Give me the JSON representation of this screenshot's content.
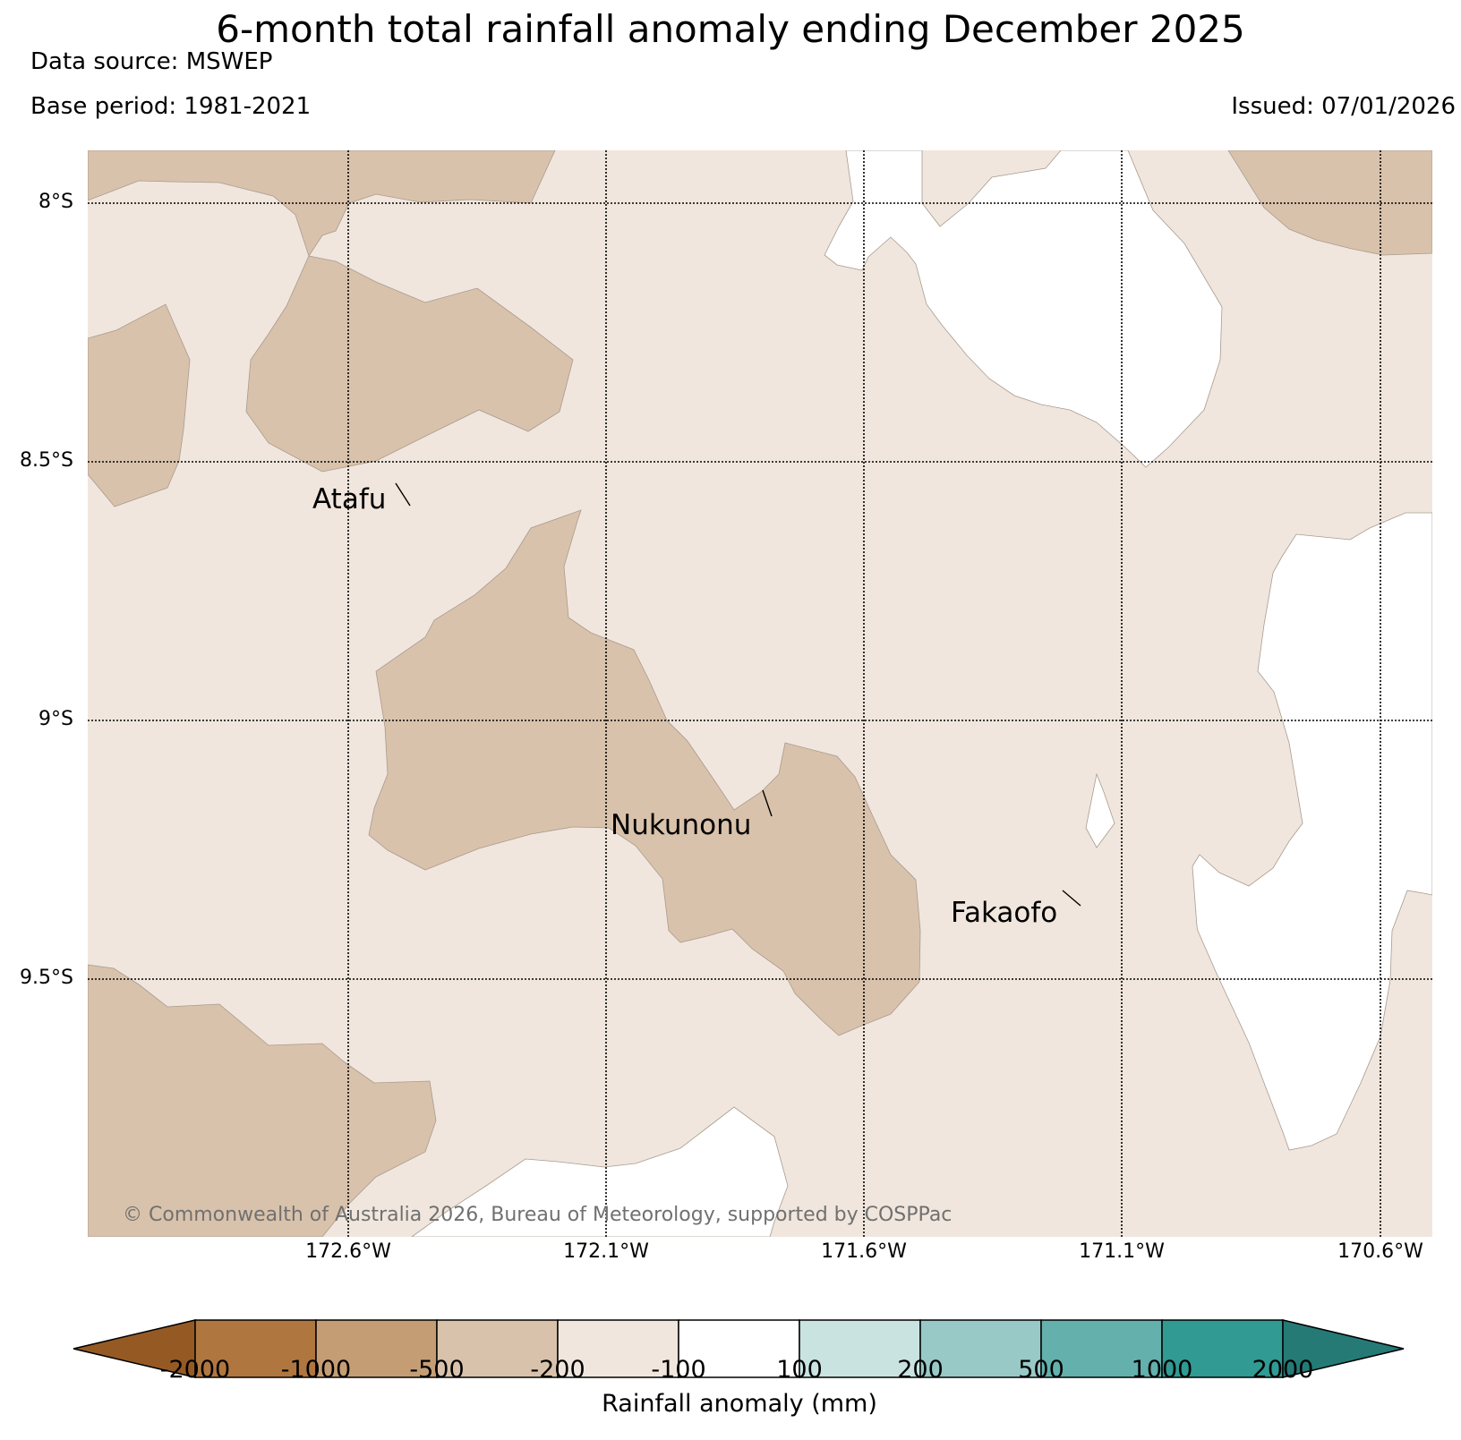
{
  "header": {
    "title": "6-month total rainfall anomaly ending December 2025",
    "data_source": "Data source: MSWEP",
    "base_period": "Base period: 1981-2021",
    "issued": "Issued: 07/01/2026"
  },
  "map": {
    "lat_labels": [
      "8°S",
      "8.5°S",
      "9°S",
      "9.5°S"
    ],
    "lon_labels": [
      "172.6°W",
      "172.1°W",
      "171.6°W",
      "171.1°W",
      "170.6°W"
    ],
    "places": [
      "Atafu",
      "Nukunonu",
      "Fakaofo"
    ],
    "copyright": "© Commonwealth of Australia 2026, Bureau of Meteorology, supported by COSPPac",
    "fill_colors": {
      "base": "#f0e6dd",
      "dry": "#d9c2ab",
      "normal": "#ffffff",
      "outline": "#a89b8f"
    }
  },
  "colorbar": {
    "title": "Rainfall anomaly (mm)",
    "tick_labels": [
      "-2000",
      "-1000",
      "-500",
      "-200",
      "-100",
      "100",
      "200",
      "500",
      "1000",
      "2000"
    ],
    "colors": [
      "#955a24",
      "#b07640",
      "#c59d75",
      "#d9c2ab",
      "#f0e6dd",
      "#ffffff",
      "#c9e3e1",
      "#98c9c6",
      "#63b0ad",
      "#309a93",
      "#257a76"
    ]
  }
}
